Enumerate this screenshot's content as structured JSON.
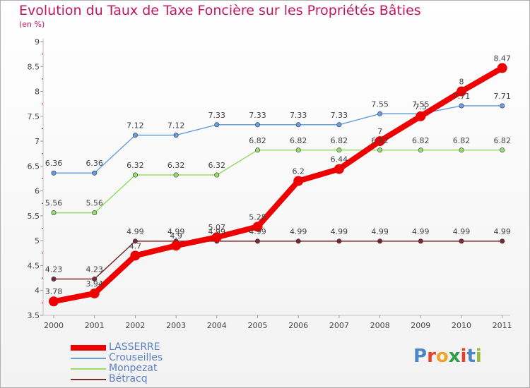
{
  "header": {
    "title": "Evolution du Taux de Taxe Foncière sur les Propriétés Bâties",
    "unit": "(en %)"
  },
  "logo": {
    "text": "Proxiti",
    "letters": [
      "P",
      "r",
      "o",
      "x",
      "i",
      "t",
      "i"
    ],
    "colors": [
      "#4a86c8",
      "#e8412c",
      "#f2a22a",
      "#2f9e44",
      "#e8412c",
      "#4a86c8",
      "#9bbb3c"
    ]
  },
  "chart_data": {
    "type": "line",
    "title": "Evolution du Taux de Taxe Foncière sur les Propriétés Bâties",
    "ylabel": "(en %)",
    "xlabel": "",
    "ylim": [
      3.5,
      9
    ],
    "yticks": [
      "3.5",
      "4",
      "4.5",
      "5",
      "5.5",
      "6",
      "6.5",
      "7",
      "7.5",
      "8",
      "8.5",
      "9"
    ],
    "categories": [
      "2000",
      "2001",
      "2002",
      "2003",
      "2004",
      "2005",
      "2006",
      "2007",
      "2008",
      "2009",
      "2010",
      "2011"
    ],
    "grid": false,
    "legend_position": "bottom-left",
    "series": [
      {
        "name": "LASSERRE",
        "color": "#ee0000",
        "values": [
          3.78,
          3.94,
          4.7,
          4.9,
          5.07,
          5.28,
          6.2,
          6.44,
          7.0,
          7.5,
          8.0,
          8.47
        ],
        "labels": [
          "3.78",
          "3.94",
          "4.7",
          "4.9",
          "5.07",
          "5.28",
          "6.2",
          "6.44",
          "7",
          "7.5",
          "8",
          "8.47"
        ]
      },
      {
        "name": "Crouseilles",
        "color": "#6a9fd8",
        "values": [
          6.36,
          6.36,
          7.12,
          7.12,
          7.33,
          7.33,
          7.33,
          7.33,
          7.55,
          7.55,
          7.71,
          7.71
        ],
        "labels": [
          "6.36",
          "6.36",
          "7.12",
          "7.12",
          "7.33",
          "7.33",
          "7.33",
          "7.33",
          "7.55",
          "7.55",
          "7.71",
          "7.71"
        ]
      },
      {
        "name": "Monpezat",
        "color": "#99dd66",
        "values": [
          5.56,
          5.56,
          6.32,
          6.32,
          6.32,
          6.82,
          6.82,
          6.82,
          6.82,
          6.82,
          6.82,
          6.82
        ],
        "labels": [
          "5.56",
          "5.56",
          "6.32",
          "6.32",
          "6.32",
          "6.82",
          "6.82",
          "6.82",
          "6.82",
          "6.82",
          "6.82",
          "6.82"
        ]
      },
      {
        "name": "Bétracq",
        "color": "#7a2a2a",
        "values": [
          4.23,
          4.23,
          4.99,
          4.99,
          4.99,
          4.99,
          4.99,
          4.99,
          4.99,
          4.99,
          4.99,
          4.99
        ],
        "labels": [
          "4.23",
          "4.23",
          "4.99",
          "4.99",
          "4.99",
          "4.99",
          "4.99",
          "4.99",
          "4.99",
          "4.99",
          "4.99",
          "4.99"
        ]
      }
    ]
  }
}
